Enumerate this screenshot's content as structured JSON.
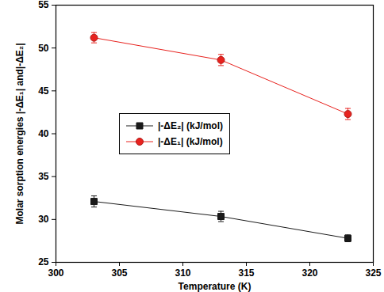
{
  "chart_data": {
    "type": "line",
    "xlabel": "Temperature (K)",
    "ylabel": "Molar sorption energies |-ΔE₁| and|-ΔE₂|",
    "xlim": [
      300,
      325
    ],
    "xticks": [
      300,
      305,
      310,
      315,
      320,
      325
    ],
    "ylim": [
      25,
      55
    ],
    "yticks": [
      25,
      30,
      35,
      40,
      45,
      50,
      55
    ],
    "grid": false,
    "legend": "left",
    "x": [
      303,
      313,
      323
    ],
    "series": [
      {
        "name": "|-ΔE₂| (kJ/mol)",
        "color": "#1a1a1a",
        "marker": "square",
        "line_style": "solid",
        "values": [
          32.1,
          30.35,
          27.8
        ],
        "errors": [
          0.65,
          0.6,
          0.4
        ]
      },
      {
        "name": "|-ΔE₁| (kJ/mol)",
        "color": "#e8221e",
        "marker": "circle",
        "line_style": "solid",
        "values": [
          51.2,
          48.6,
          42.3
        ],
        "errors": [
          0.6,
          0.65,
          0.65
        ]
      }
    ]
  }
}
